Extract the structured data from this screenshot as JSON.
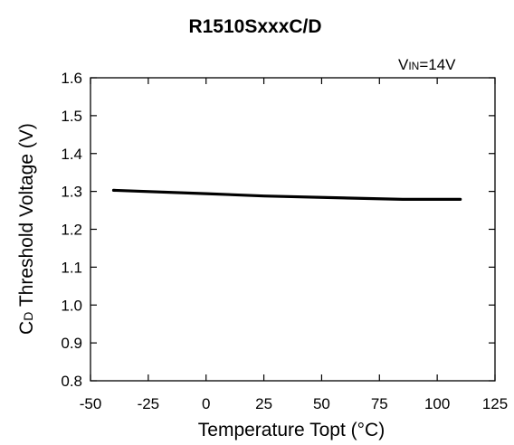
{
  "chart_data": {
    "type": "line",
    "title": "R1510SxxxC/D",
    "xlabel": "Temperature Topt (°C)",
    "ylabel": {
      "prefix": "C",
      "sub": "D",
      "rest": " Threshold Voltage (V)"
    },
    "annotation": {
      "prefix": "V",
      "sub": "IN",
      "rest": "=14V"
    },
    "xlim": [
      -50,
      125
    ],
    "ylim": [
      0.8,
      1.6
    ],
    "xticks": [
      -50,
      -25,
      0,
      25,
      50,
      75,
      100,
      125
    ],
    "xtick_labels": [
      "-50",
      "-25",
      "0",
      "25",
      "50",
      "75",
      "100",
      "125"
    ],
    "yticks": [
      0.8,
      0.9,
      1.0,
      1.1,
      1.2,
      1.3,
      1.4,
      1.5,
      1.6
    ],
    "ytick_labels": [
      "0.8",
      "0.9",
      "1.0",
      "1.1",
      "1.2",
      "1.3",
      "1.4",
      "1.5",
      "1.6"
    ],
    "grid": false,
    "series": [
      {
        "color": "#000000",
        "x": [
          -40,
          0,
          25,
          85,
          110
        ],
        "y": [
          1.303,
          1.294,
          1.288,
          1.279,
          1.279
        ]
      }
    ]
  }
}
